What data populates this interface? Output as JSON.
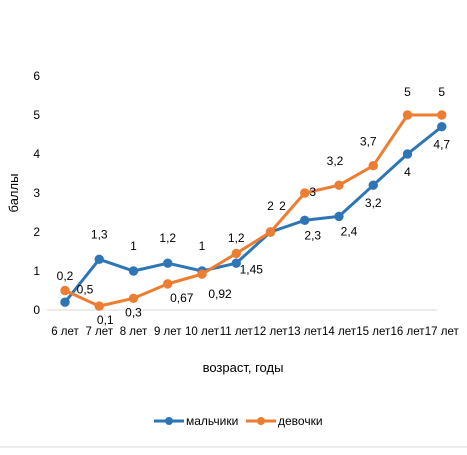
{
  "chart_data": {
    "type": "line",
    "categories": [
      "6 лет",
      "7 лет",
      "8 лет",
      "9 лет",
      "10 лет",
      "11 лет",
      "12 лет",
      "13 лет",
      "14 лет",
      "15 лет",
      "16 лет",
      "17 лет"
    ],
    "series": [
      {
        "name": "мальчики",
        "color": "#2e75b6",
        "values": [
          0.2,
          1.3,
          1,
          1.2,
          1,
          1.2,
          2,
          2.3,
          2.4,
          3.2,
          4,
          4.7
        ],
        "labels": [
          "0,2",
          "1,3",
          "1",
          "1,2",
          "1",
          "1,2",
          "2",
          "2,3",
          "2,4",
          "3,2",
          "4",
          "4,7"
        ]
      },
      {
        "name": "девочки",
        "color": "#ed7d31",
        "values": [
          0.5,
          0.1,
          0.3,
          0.67,
          0.92,
          1.45,
          2,
          3,
          3.2,
          3.7,
          5,
          5
        ],
        "labels": [
          "0,5",
          "0,1",
          "0,3",
          "0,67",
          "0,92",
          "1,45",
          "2",
          "3",
          "3,2",
          "3,7",
          "5",
          "5"
        ]
      }
    ],
    "xlabel": "возраст, годы",
    "ylabel": "баллы",
    "ylim": [
      0,
      6
    ],
    "yticks": [
      "0",
      "1",
      "2",
      "3",
      "4",
      "5",
      "6"
    ],
    "grid": false,
    "legend_position": "bottom"
  }
}
